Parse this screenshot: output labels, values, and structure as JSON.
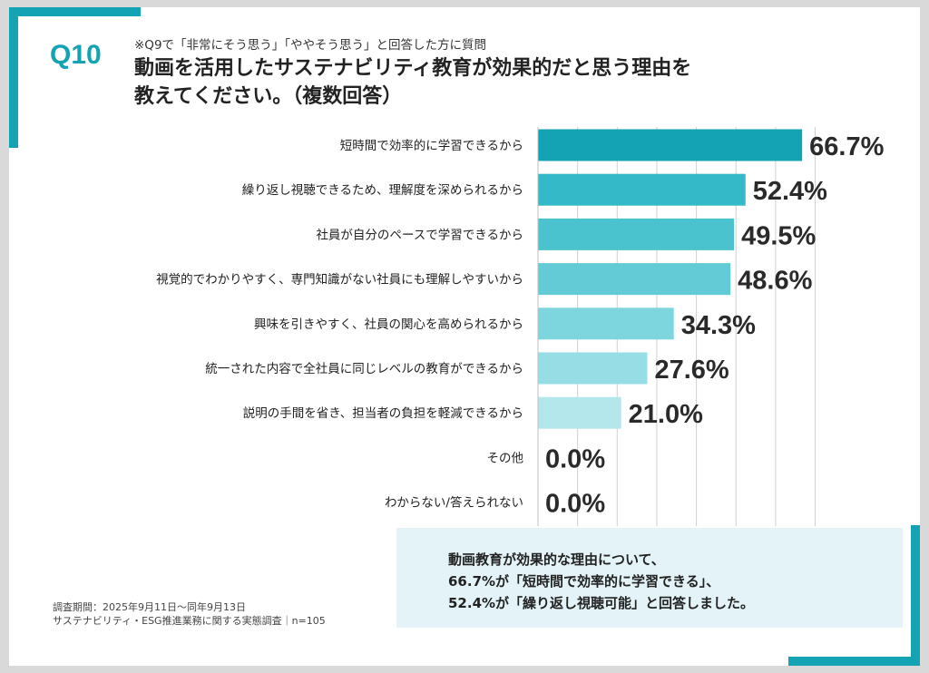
{
  "header": {
    "question_number": "Q10",
    "note": "※Q9で「非常にそう思う」「ややそう思う」と回答した方に質問",
    "title_lines": [
      "動画を活用したサステナビリティ教育が効果的だと思う理由を",
      "教えてください。（複数回答）"
    ]
  },
  "chart_data": {
    "type": "bar",
    "orientation": "horizontal",
    "title": "動画を活用したサステナビリティ教育が効果的だと思う理由を教えてください。（複数回答）",
    "categories": [
      "短時間で効率的に学習できるから",
      "繰り返し視聴できるため、理解度を深められるから",
      "社員が自分のペースで学習できるから",
      "視覚的でわかりやすく、専門知識がない社員にも理解しやすいから",
      "興味を引きやすく、社員の関心を高められるから",
      "統一された内容で全社員に同じレベルの教育ができるから",
      "説明の手間を省き、担当者の負担を軽減できるから",
      "その他",
      "わからない/答えられない"
    ],
    "values": [
      66.7,
      52.4,
      49.5,
      48.6,
      34.3,
      27.6,
      21.0,
      0.0,
      0.0
    ],
    "value_labels": [
      "66.7%",
      "52.4%",
      "49.5%",
      "48.6%",
      "34.3%",
      "27.6%",
      "21.0%",
      "0.0%",
      "0.0%"
    ],
    "bar_colors": [
      "#14a3b4",
      "#33b9c7",
      "#4bc3cf",
      "#63cbd6",
      "#7dd5de",
      "#97dde5",
      "#b4e7ec",
      "#cfeff2",
      "#cfeff2"
    ],
    "xlim": [
      0,
      70
    ],
    "grid": true,
    "gridline_step": 10,
    "unit": "%"
  },
  "callout": {
    "lines": [
      "動画教育が効果的な理由について、",
      "66.7%が「短時間で効率的に学習できる」、",
      "52.4%が「繰り返し視聴可能」と回答しました。"
    ]
  },
  "footer": {
    "period": "調査期間：2025年9月11日～同年9月13日",
    "survey": "サステナビリティ・ESG推進業務に関する実態調査｜n=105"
  },
  "colors": {
    "accent": "#14a3b4",
    "callout_bg": "#e3f3f7",
    "gridline": "#d0d0d0"
  }
}
